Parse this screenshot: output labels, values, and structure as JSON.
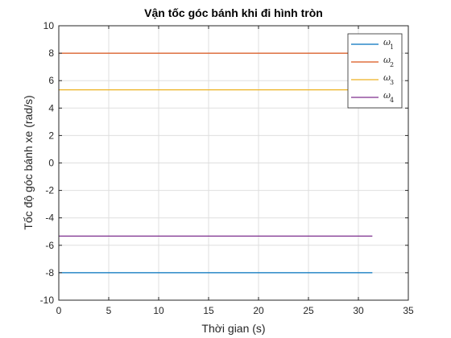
{
  "chart_data": {
    "type": "line",
    "title": "Vận tốc góc bánh khi đi hình tròn",
    "xlabel": "Thời gian (s)",
    "ylabel": "Tốc độ góc bánh xe (rad/s)",
    "xlim": [
      0,
      35
    ],
    "ylim": [
      -10,
      10
    ],
    "xticks": [
      "0",
      "5",
      "10",
      "15",
      "20",
      "25",
      "30",
      "35"
    ],
    "yticks": [
      "-10",
      "-8",
      "-6",
      "-4",
      "-2",
      "0",
      "2",
      "4",
      "6",
      "8",
      "10"
    ],
    "grid": true,
    "legend_position": "top-right",
    "series": [
      {
        "name": "ω",
        "subscript": "1",
        "color": "#0072BD",
        "x": [
          0,
          31.4
        ],
        "y": [
          -8,
          -8
        ]
      },
      {
        "name": "ω",
        "subscript": "2",
        "color": "#D95319",
        "x": [
          0,
          31.4
        ],
        "y": [
          8,
          8
        ]
      },
      {
        "name": "ω",
        "subscript": "3",
        "color": "#EDB120",
        "x": [
          0,
          31.4
        ],
        "y": [
          5.33,
          5.33
        ]
      },
      {
        "name": "ω",
        "subscript": "4",
        "color": "#7E2F8E",
        "x": [
          0,
          31.4
        ],
        "y": [
          -5.33,
          -5.33
        ]
      }
    ]
  }
}
